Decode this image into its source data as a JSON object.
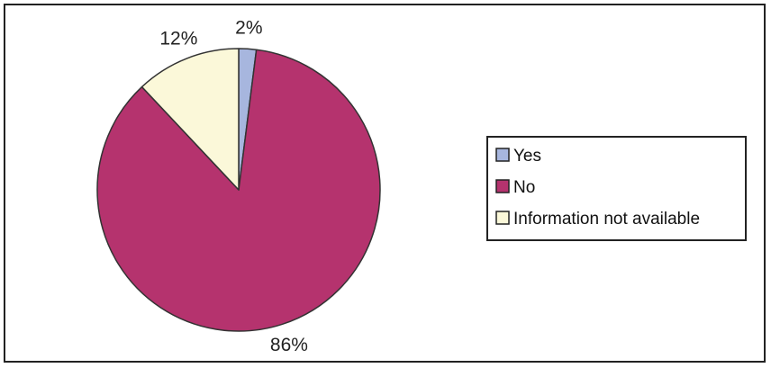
{
  "chart_data": {
    "type": "pie",
    "title": "",
    "slices": [
      {
        "label": "Yes",
        "value": 2,
        "value_label": "2%",
        "color": "#a7b6de"
      },
      {
        "label": "No",
        "value": 86,
        "value_label": "86%",
        "color": "#b5336e"
      },
      {
        "label": "Information not available",
        "value": 12,
        "value_label": "12%",
        "color": "#fbf8d9"
      }
    ],
    "start_angle": "12 o'clock",
    "direction": "clockwise",
    "legend_position": "right",
    "outline_color": "#333333"
  }
}
